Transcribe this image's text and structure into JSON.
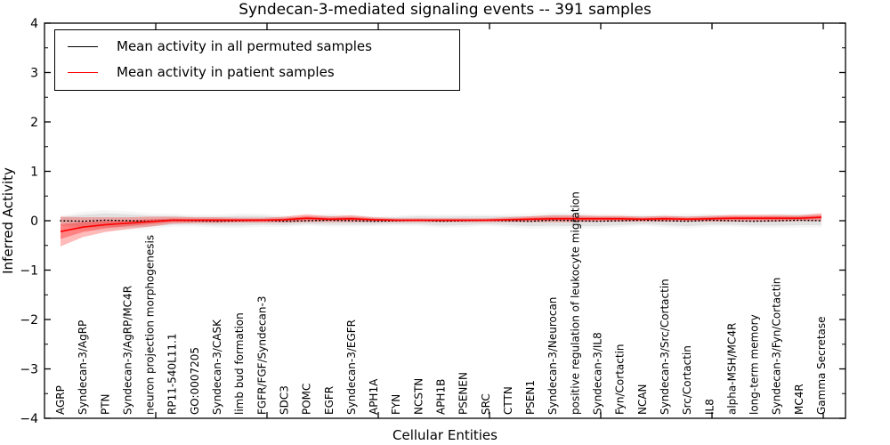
{
  "title": "Syndecan-3-mediated signaling events -- 391 samples",
  "chart_data": {
    "type": "line",
    "title": "Syndecan-3-mediated signaling events -- 391 samples",
    "xlabel": "Cellular Entities",
    "ylabel": "Inferred Activity",
    "ylim": [
      -4,
      4
    ],
    "grid": false,
    "legend_position": "upper left",
    "y_major_ticks": [
      4,
      3,
      2,
      1,
      0,
      -1,
      -2,
      -3,
      -4
    ],
    "y_tick_labels": [
      "4",
      "3",
      "2",
      "1",
      "0",
      "−1",
      "−2",
      "−3",
      "−4"
    ],
    "y_minor_tick_step": 0.5,
    "categories": [
      "AGRP",
      "Syndecan-3/AgRP",
      "PTN",
      "Syndecan-3/AgRP/MC4R",
      "neuron projection morphogenesis",
      "RP11-540L11.1",
      "GO:0007205",
      "Syndecan-3/CASK",
      "limb bud formation",
      "FGFR/FGF/Syndecan-3",
      "SDC3",
      "POMC",
      "EGFR",
      "Syndecan-3/EGFR",
      "APH1A",
      "FYN",
      "NCSTN",
      "APH1B",
      "PSENEN",
      "SRC",
      "CTTN",
      "PSEN1",
      "Syndecan-3/Neurocan",
      "positive regulation of leukocyte migration",
      "Syndecan-3/IL8",
      "Fyn/Cortactin",
      "NCAN",
      "Syndecan-3/Src/Cortactin",
      "Src/Cortactin",
      "IL8",
      "alpha-MSH/MC4R",
      "long-term memory",
      "Syndecan-3/Fyn/Cortactin",
      "MC4R",
      "Gamma Secretase"
    ],
    "series": [
      {
        "name": "Mean activity in all permuted samples",
        "color": "#000000",
        "linestyle": "dotted",
        "band_color": "#999999",
        "values": [
          0,
          -0.01,
          0.01,
          0,
          -0.01,
          0.01,
          0,
          -0.01,
          0,
          0.01,
          -0.01,
          0,
          0.01,
          0,
          -0.01,
          0,
          0.01,
          -0.01,
          0,
          0.01,
          0,
          -0.01,
          0.01,
          0,
          -0.01,
          0,
          0.01,
          0,
          -0.01,
          0.01,
          0,
          -0.01,
          0,
          0.01,
          0
        ],
        "band_halfwidth": [
          0.07,
          0.13,
          0.14,
          0.13,
          0.11,
          0.09,
          0.08,
          0.09,
          0.1,
          0.09,
          0.08,
          0.07,
          0.09,
          0.08,
          0.07,
          0.07,
          0.08,
          0.09,
          0.09,
          0.08,
          0.09,
          0.1,
          0.11,
          0.11,
          0.1,
          0.09,
          0.08,
          0.09,
          0.1,
          0.09,
          0.08,
          0.09,
          0.1,
          0.1,
          0.09
        ]
      },
      {
        "name": "Mean activity in patient samples",
        "color": "#ff0000",
        "linestyle": "solid",
        "band_color": "#ff0000",
        "values": [
          -0.22,
          -0.13,
          -0.08,
          -0.05,
          -0.02,
          0.01,
          0.01,
          0.01,
          0.01,
          0.01,
          0.02,
          0.05,
          0.03,
          0.04,
          0.02,
          0.01,
          0.01,
          0.01,
          0.01,
          0.01,
          0.02,
          0.03,
          0.04,
          0.04,
          0.04,
          0.04,
          0.03,
          0.04,
          0.03,
          0.04,
          0.05,
          0.05,
          0.05,
          0.05,
          0.07
        ],
        "band_halfwidth": [
          0.3,
          0.2,
          0.15,
          0.12,
          0.1,
          0.07,
          0.06,
          0.06,
          0.05,
          0.05,
          0.06,
          0.08,
          0.06,
          0.07,
          0.05,
          0.04,
          0.04,
          0.04,
          0.04,
          0.04,
          0.05,
          0.06,
          0.07,
          0.07,
          0.06,
          0.06,
          0.05,
          0.06,
          0.05,
          0.06,
          0.07,
          0.07,
          0.07,
          0.06,
          0.08
        ]
      }
    ]
  },
  "legend": {
    "items": [
      {
        "label": "Mean activity in all permuted samples",
        "color": "#000000"
      },
      {
        "label": "Mean activity in patient samples",
        "color": "#ff0000"
      }
    ]
  }
}
